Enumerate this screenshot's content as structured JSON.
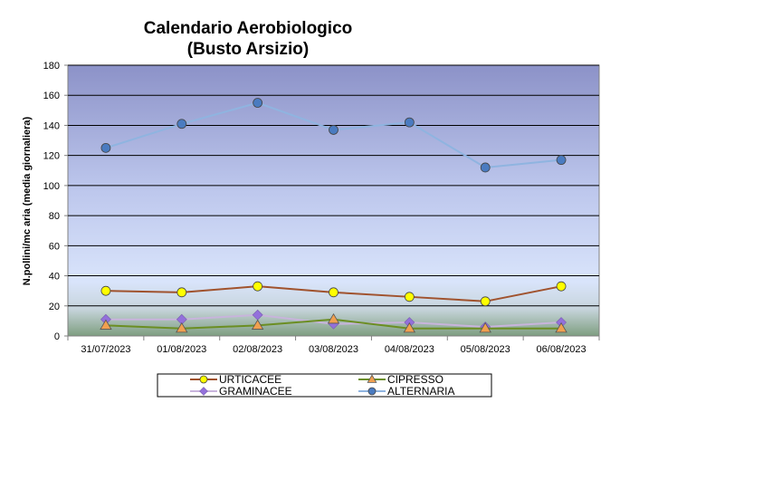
{
  "chart_data": {
    "type": "line",
    "title": "Calendario Aerobiologico",
    "subtitle": "(Busto Arsizio)",
    "xlabel": "",
    "ylabel": "N.pollini/mc aria (media giornaliera)",
    "categories": [
      "31/07/2023",
      "01/08/2023",
      "02/08/2023",
      "03/08/2023",
      "04/08/2023",
      "05/08/2023",
      "06/08/2023"
    ],
    "ylim": [
      0,
      180
    ],
    "yticks": [
      0,
      20,
      40,
      60,
      80,
      100,
      120,
      140,
      160,
      180
    ],
    "grid": true,
    "legend_position": "bottom",
    "series": [
      {
        "name": "URTICACEE",
        "values": [
          30,
          29,
          33,
          29,
          26,
          23,
          33
        ],
        "color": "#a0522d",
        "marker": "circle",
        "marker_color": "#ffff00"
      },
      {
        "name": "CIPRESSO",
        "values": [
          7,
          5,
          7,
          11,
          5,
          5,
          5
        ],
        "color": "#6b8e23",
        "marker": "triangle",
        "marker_color": "#f0a050"
      },
      {
        "name": "GRAMINACEE",
        "values": [
          11,
          11,
          14,
          8,
          9,
          6,
          9
        ],
        "color": "#c8b4dc",
        "marker": "diamond",
        "marker_color": "#9370db"
      },
      {
        "name": "ALTERNARIA",
        "values": [
          125,
          141,
          155,
          137,
          142,
          112,
          117
        ],
        "color": "#8fb4e0",
        "marker": "circle",
        "marker_color": "#4a7bc0"
      }
    ]
  }
}
